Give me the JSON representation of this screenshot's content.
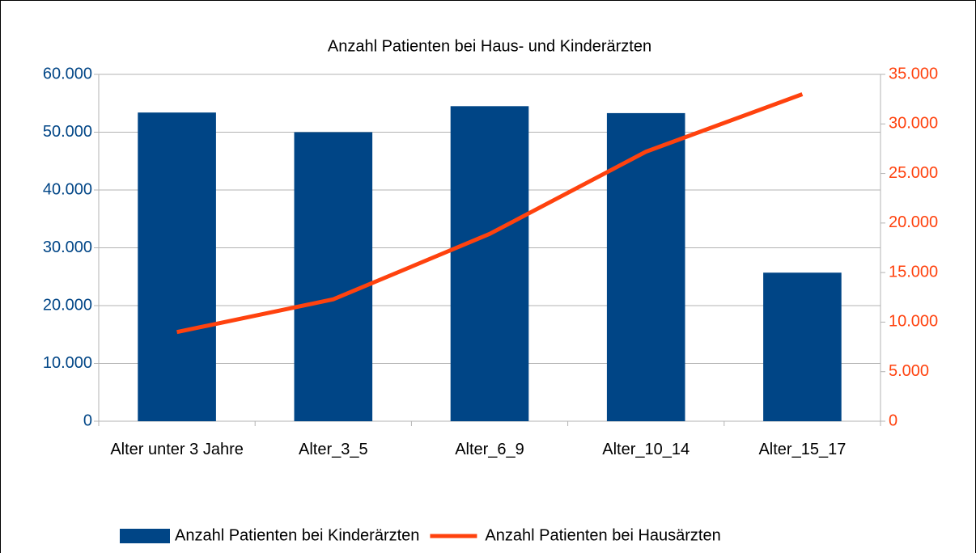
{
  "chart_data": {
    "type": "bar",
    "title": "Anzahl Patienten bei Haus- und Kinderärzten",
    "categories": [
      "Alter unter 3 Jahre",
      "Alter_3_5",
      "Alter_6_9",
      "Alter_10_14",
      "Alter_15_17"
    ],
    "series": [
      {
        "name": "Anzahl Patienten bei Kinderärzten",
        "type": "bar",
        "color": "#004586",
        "values": [
          53400,
          50000,
          54500,
          53300,
          25700
        ]
      },
      {
        "name": "Anzahl Patienten bei Hausärzten",
        "type": "line",
        "axis": "y2",
        "color": "#ff420e",
        "values": [
          9000,
          12300,
          18900,
          27200,
          33000
        ]
      }
    ],
    "ylim": [
      0,
      60000
    ],
    "yticks": [
      0,
      {
        "value": 10000,
        "label": "10.000"
      },
      {
        "value": 20000,
        "label": "20.000"
      },
      {
        "value": 30000,
        "label": "30.000"
      },
      {
        "value": 40000,
        "label": "40.000"
      },
      {
        "value": 50000,
        "label": "50.000"
      },
      {
        "value": 60000,
        "label": "60.000"
      }
    ],
    "y2lim": [
      0,
      35000
    ],
    "y2ticks": [
      0,
      {
        "value": 5000,
        "label": "5.000"
      },
      {
        "value": 10000,
        "label": "10.000"
      },
      {
        "value": 15000,
        "label": "15.000"
      },
      {
        "value": 20000,
        "label": "20.000"
      },
      {
        "value": 25000,
        "label": "25.000"
      },
      {
        "value": 30000,
        "label": "30.000"
      },
      {
        "value": 35000,
        "label": "35.000"
      }
    ],
    "grid": true,
    "legend": "bottom"
  }
}
